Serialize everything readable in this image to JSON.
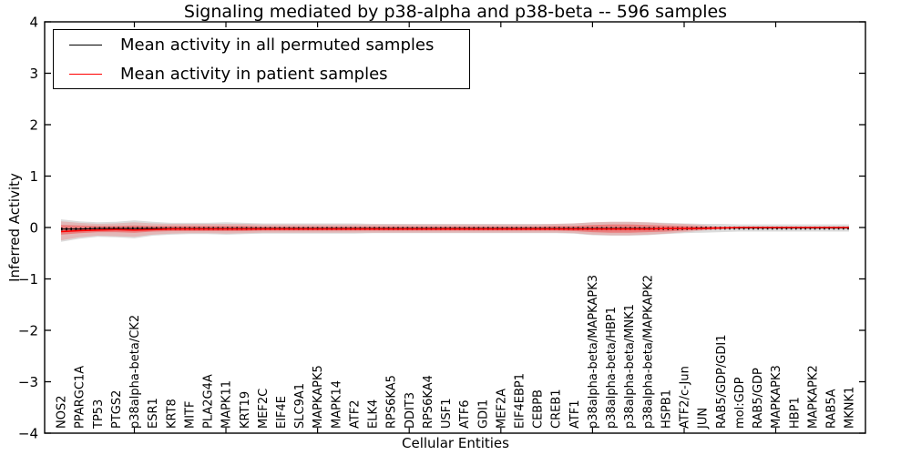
{
  "chart_data": {
    "type": "line",
    "title": "Signaling mediated by p38-alpha and p38-beta -- 596 samples",
    "xlabel": "Cellular Entities",
    "ylabel": "Inferred Activity",
    "ylim": [
      -4,
      4
    ],
    "yticks": [
      4,
      3,
      2,
      1,
      0,
      -1,
      -2,
      -3,
      -4
    ],
    "grid": false,
    "legend": {
      "position": "upper-left",
      "entries": [
        {
          "label": "Mean activity in all permuted samples",
          "color": "#000000"
        },
        {
          "label": "Mean activity in patient samples",
          "color": "#ff0000"
        }
      ]
    },
    "categories": [
      "NOS2",
      "PPARGC1A",
      "TP53",
      "PTGS2",
      "p38alpha-beta/CK2",
      "ESR1",
      "KRT8",
      "MITF",
      "PLA2G4A",
      "MAPK11",
      "KRT19",
      "MEF2C",
      "EIF4E",
      "SLC9A1",
      "MAPKAPK5",
      "MAPK14",
      "ATF2",
      "ELK4",
      "RPS6KA5",
      "DDIT3",
      "RPS6KA4",
      "USF1",
      "ATF6",
      "GDI1",
      "MEF2A",
      "EIF4EBP1",
      "CEBPB",
      "CREB1",
      "ATF1",
      "p38alpha-beta/MAPKAPK3",
      "p38alpha-beta/HBP1",
      "p38alpha-beta/MNK1",
      "p38alpha-beta/MAPKAPK2",
      "HSPB1",
      "ATF2/c-Jun",
      "JUN",
      "RAB5/GDP/GDI1",
      "mol:GDP",
      "RAB5/GDP",
      "MAPKAPK3",
      "HBP1",
      "MAPKAPK2",
      "RAB5A",
      "MKNK1"
    ],
    "series": [
      {
        "name": "Mean activity in all permuted samples",
        "color": "#000000",
        "style": "solid-with-dot-markers",
        "values": [
          -0.03,
          -0.03,
          -0.02,
          -0.02,
          -0.02,
          -0.02,
          -0.02,
          -0.02,
          -0.02,
          -0.02,
          -0.02,
          -0.02,
          -0.02,
          -0.02,
          -0.02,
          -0.02,
          -0.02,
          -0.02,
          -0.02,
          -0.02,
          -0.02,
          -0.02,
          -0.02,
          -0.02,
          -0.02,
          -0.02,
          -0.02,
          -0.02,
          -0.02,
          -0.02,
          -0.02,
          -0.02,
          -0.02,
          -0.02,
          -0.02,
          -0.01,
          -0.01,
          -0.01,
          -0.01,
          -0.01,
          -0.01,
          -0.01,
          -0.01,
          -0.01
        ]
      },
      {
        "name": "Mean activity in patient samples",
        "color": "#ff0000",
        "style": "solid",
        "values": [
          -0.08,
          -0.06,
          -0.05,
          -0.04,
          -0.05,
          -0.04,
          -0.03,
          -0.03,
          -0.03,
          -0.03,
          -0.03,
          -0.03,
          -0.03,
          -0.03,
          -0.03,
          -0.03,
          -0.03,
          -0.03,
          -0.03,
          -0.03,
          -0.03,
          -0.03,
          -0.03,
          -0.03,
          -0.03,
          -0.03,
          -0.03,
          -0.03,
          -0.03,
          -0.03,
          -0.03,
          -0.03,
          -0.03,
          -0.02,
          -0.02,
          -0.02,
          -0.01,
          0,
          0,
          0,
          0,
          0,
          0,
          0
        ]
      }
    ],
    "bands": [
      {
        "name": "permuted-samples-envelope",
        "color": "#8c8c8c",
        "opacity": 0.3,
        "upper": [
          0.16,
          0.12,
          0.1,
          0.11,
          0.14,
          0.11,
          0.09,
          0.09,
          0.09,
          0.1,
          0.09,
          0.08,
          0.08,
          0.08,
          0.08,
          0.08,
          0.08,
          0.07,
          0.07,
          0.07,
          0.07,
          0.07,
          0.07,
          0.07,
          0.07,
          0.07,
          0.07,
          0.07,
          0.08,
          0.1,
          0.11,
          0.11,
          0.1,
          0.09,
          0.08,
          0.07,
          0.07,
          0.06,
          0.06,
          0.06,
          0.06,
          0.06,
          0.06,
          0.06
        ],
        "lower": [
          -0.28,
          -0.22,
          -0.18,
          -0.19,
          -0.21,
          -0.16,
          -0.14,
          -0.13,
          -0.13,
          -0.14,
          -0.13,
          -0.12,
          -0.12,
          -0.12,
          -0.12,
          -0.12,
          -0.12,
          -0.11,
          -0.11,
          -0.11,
          -0.11,
          -0.11,
          -0.11,
          -0.11,
          -0.11,
          -0.11,
          -0.11,
          -0.11,
          -0.12,
          -0.15,
          -0.16,
          -0.16,
          -0.15,
          -0.13,
          -0.11,
          -0.1,
          -0.09,
          -0.08,
          -0.08,
          -0.08,
          -0.08,
          -0.08,
          -0.08,
          -0.08
        ]
      },
      {
        "name": "patient-samples-envelope-outer",
        "color": "#ff0000",
        "opacity": 0.16,
        "upper": [
          0.12,
          0.09,
          0.07,
          0.08,
          0.1,
          0.08,
          0.07,
          0.07,
          0.07,
          0.07,
          0.07,
          0.06,
          0.06,
          0.06,
          0.06,
          0.06,
          0.06,
          0.06,
          0.06,
          0.06,
          0.06,
          0.06,
          0.06,
          0.06,
          0.06,
          0.06,
          0.06,
          0.07,
          0.08,
          0.1,
          0.11,
          0.11,
          0.1,
          0.08,
          0.07,
          0.05,
          0.02,
          0.01,
          0.01,
          0.01,
          0.01,
          0.01,
          0.01,
          0.01
        ],
        "lower": [
          -0.25,
          -0.19,
          -0.16,
          -0.17,
          -0.18,
          -0.14,
          -0.12,
          -0.11,
          -0.11,
          -0.12,
          -0.11,
          -0.1,
          -0.1,
          -0.1,
          -0.1,
          -0.1,
          -0.1,
          -0.1,
          -0.1,
          -0.1,
          -0.1,
          -0.1,
          -0.1,
          -0.1,
          -0.1,
          -0.1,
          -0.1,
          -0.1,
          -0.11,
          -0.14,
          -0.15,
          -0.15,
          -0.14,
          -0.12,
          -0.09,
          -0.06,
          -0.03,
          -0.02,
          -0.02,
          -0.02,
          -0.02,
          -0.02,
          -0.02,
          -0.02
        ]
      },
      {
        "name": "patient-samples-envelope-inner",
        "color": "#ff0000",
        "opacity": 0.32,
        "upper": [
          0.05,
          0.04,
          0.03,
          0.03,
          0.04,
          0.03,
          0.03,
          0.03,
          0.03,
          0.03,
          0.03,
          0.02,
          0.02,
          0.02,
          0.02,
          0.02,
          0.02,
          0.02,
          0.02,
          0.02,
          0.02,
          0.02,
          0.02,
          0.02,
          0.02,
          0.02,
          0.02,
          0.03,
          0.03,
          0.05,
          0.06,
          0.06,
          0.05,
          0.04,
          0.03,
          0.02,
          0.01,
          0.01,
          0.01,
          0.01,
          0.01,
          0.01,
          0.01,
          0.01
        ],
        "lower": [
          -0.14,
          -0.11,
          -0.09,
          -0.09,
          -0.1,
          -0.08,
          -0.07,
          -0.07,
          -0.07,
          -0.07,
          -0.07,
          -0.06,
          -0.06,
          -0.06,
          -0.06,
          -0.06,
          -0.06,
          -0.06,
          -0.06,
          -0.06,
          -0.06,
          -0.06,
          -0.06,
          -0.06,
          -0.06,
          -0.06,
          -0.06,
          -0.06,
          -0.07,
          -0.09,
          -0.1,
          -0.1,
          -0.09,
          -0.08,
          -0.06,
          -0.04,
          -0.02,
          -0.01,
          -0.01,
          -0.01,
          -0.01,
          -0.01,
          -0.01,
          -0.01
        ]
      }
    ]
  }
}
